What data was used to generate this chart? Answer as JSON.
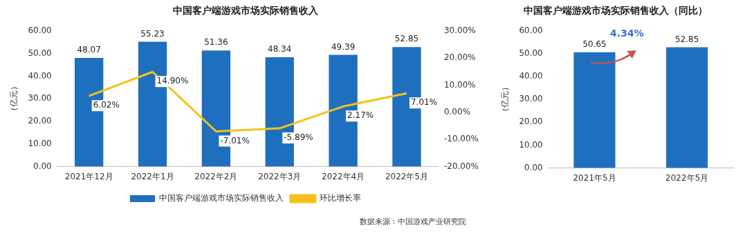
{
  "chart_data": [
    {
      "type": "bar",
      "title": "中国客户端游戏市场实际销售收入",
      "ylabel": "（亿元）",
      "categories": [
        "2021年12月",
        "2022年1月",
        "2022年2月",
        "2022年3月",
        "2022年4月",
        "2022年5月"
      ],
      "series": [
        {
          "name": "中国客户端游戏市场实际销售收入",
          "type": "bar",
          "color": "#1f6fbf",
          "values": [
            48.07,
            55.23,
            51.36,
            48.34,
            49.39,
            52.85
          ],
          "value_labels": [
            "48.07",
            "55.23",
            "51.36",
            "48.34",
            "49.39",
            "52.85"
          ]
        },
        {
          "name": "环比增长率",
          "type": "line",
          "axis": "y2",
          "color": "#f5c21b",
          "values": [
            6.02,
            14.9,
            -7.01,
            -5.89,
            2.17,
            7.01
          ],
          "value_labels": [
            "6.02%",
            "14.90%",
            "-7.01%",
            "-5.89%",
            "2.17%",
            "7.01%"
          ]
        }
      ],
      "ylim": [
        0,
        60
      ],
      "yticks": [
        {
          "value": 0,
          "label": "0.00"
        },
        {
          "value": 10,
          "label": "10.00"
        },
        {
          "value": 20,
          "label": "20.00"
        },
        {
          "value": 30,
          "label": "30.00"
        },
        {
          "value": 40,
          "label": "40.00"
        },
        {
          "value": 50,
          "label": "50.00"
        },
        {
          "value": 60,
          "label": "60.00"
        }
      ],
      "y2lim": [
        -20,
        30
      ],
      "y2ticks": [
        {
          "value": -20,
          "label": "-20.00%"
        },
        {
          "value": -10,
          "label": "-10.00%"
        },
        {
          "value": 0,
          "label": "0.00%"
        },
        {
          "value": 10,
          "label": "10.00%"
        },
        {
          "value": 20,
          "label": "20.00%"
        },
        {
          "value": 30,
          "label": "30.00%"
        }
      ],
      "legend": "bottom",
      "marker": "none",
      "annotations": [
        "数据来源：中国游戏产业研究院"
      ]
    },
    {
      "type": "bar",
      "title": "中国客户端游戏市场实际销售收入（同比）",
      "ylabel": "（亿元）",
      "categories": [
        "2021年5月",
        "2022年5月"
      ],
      "values": [
        50.65,
        52.85
      ],
      "color": "#1f6fbf",
      "data_labels": true,
      "ylim": [
        0,
        60
      ],
      "yticks": [
        {
          "value": 0,
          "label": "0.00"
        },
        {
          "value": 10,
          "label": "10.00"
        },
        {
          "value": 20,
          "label": "20.00"
        },
        {
          "value": 30,
          "label": "30.00"
        },
        {
          "value": 40,
          "label": "40.00"
        },
        {
          "value": 50,
          "label": "50.00"
        },
        {
          "value": 60,
          "label": "60.00"
        }
      ],
      "annotations": [
        "4.34%"
      ]
    }
  ]
}
